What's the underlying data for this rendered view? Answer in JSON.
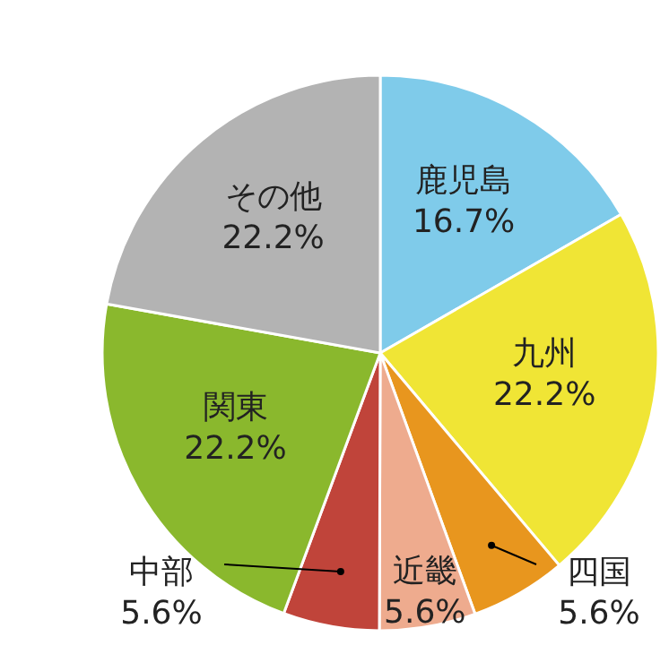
{
  "chart_data": {
    "type": "pie",
    "categories": [
      "鹿児島",
      "九州",
      "四国",
      "近畿",
      "中部",
      "関東",
      "その他"
    ],
    "values": [
      16.7,
      22.2,
      5.6,
      5.6,
      5.6,
      22.2,
      22.2
    ],
    "colors": [
      "#7fcbea",
      "#f0e535",
      "#e8961e",
      "#eeab8e",
      "#c0443a",
      "#8ab82d",
      "#b3b3b3"
    ],
    "value_labels": [
      "16.7%",
      "22.2%",
      "5.6%",
      "5.6%",
      "5.6%",
      "22.2%",
      "22.2%"
    ]
  }
}
